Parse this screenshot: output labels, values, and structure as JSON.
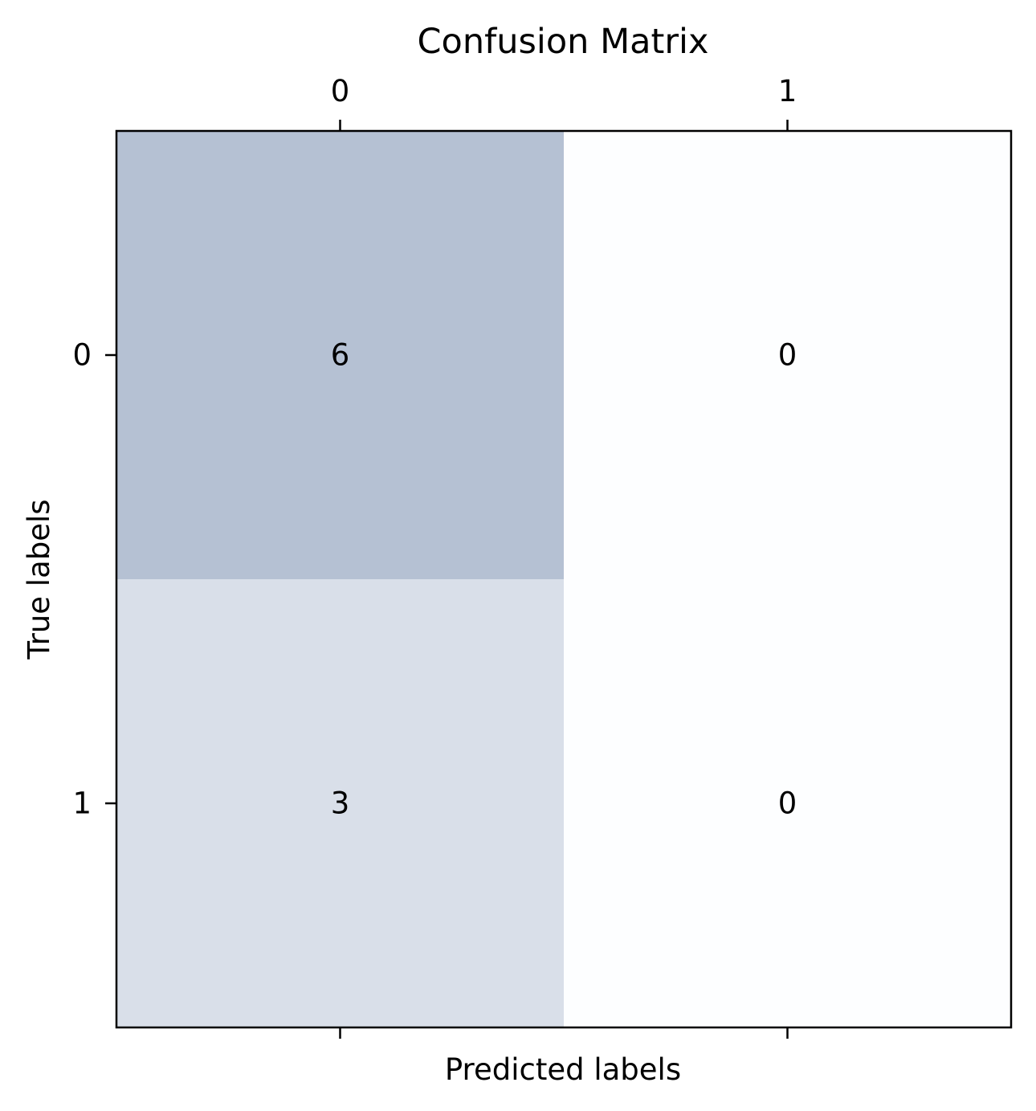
{
  "chart_data": {
    "type": "heatmap",
    "title": "Confusion Matrix",
    "xlabel": "Predicted labels",
    "ylabel": "True labels",
    "x_ticks": [
      "0",
      "1"
    ],
    "y_ticks": [
      "0",
      "1"
    ],
    "matrix": [
      [
        6,
        0
      ],
      [
        3,
        0
      ]
    ],
    "x_axis_position": "top",
    "grid": false,
    "legend": "none",
    "colormap": {
      "low": "#f7fbff",
      "high": "#08306b",
      "alpha": 0.3
    },
    "colors": {
      "frame": "#000000",
      "text": "#000000"
    }
  }
}
